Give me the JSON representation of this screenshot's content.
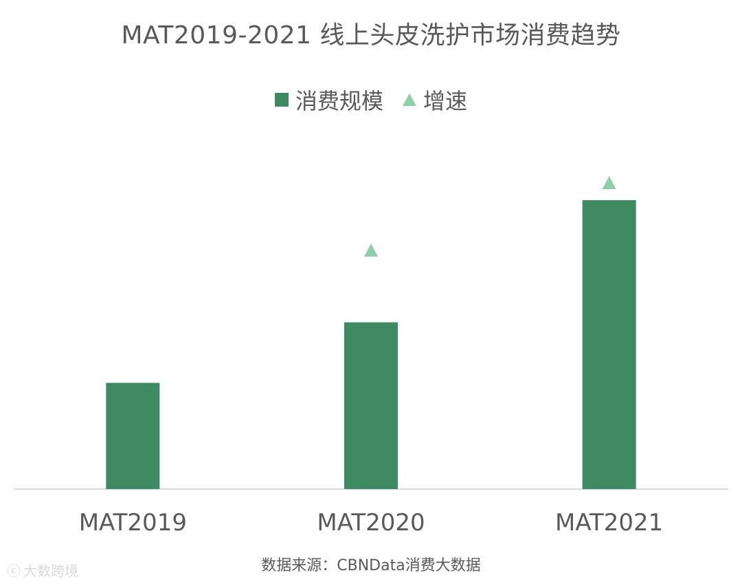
{
  "colors": {
    "bar": "#3f8a63",
    "growth_marker": "#8ccfa8",
    "axis": "#d9d9d9",
    "text": "#595959"
  },
  "legend": {
    "scale_label": "消费规模",
    "growth_label": "增速"
  },
  "source_text": "数据来源：CBNData消费大数据",
  "watermark_text": "大数跨境",
  "chart_data": {
    "type": "bar",
    "title": "MAT2019-2021 线上头皮洗护市场消费趋势",
    "categories": [
      "MAT2019",
      "MAT2020",
      "MAT2021"
    ],
    "series": [
      {
        "name": "消费规模",
        "type": "bar",
        "values": [
          1.0,
          1.57,
          2.72
        ]
      },
      {
        "name": "增速",
        "type": "marker",
        "marker": "triangle",
        "values": [
          null,
          57,
          73
        ]
      }
    ],
    "xlabel": "",
    "ylabel": "",
    "grid": false,
    "legend_position": "top-center"
  }
}
